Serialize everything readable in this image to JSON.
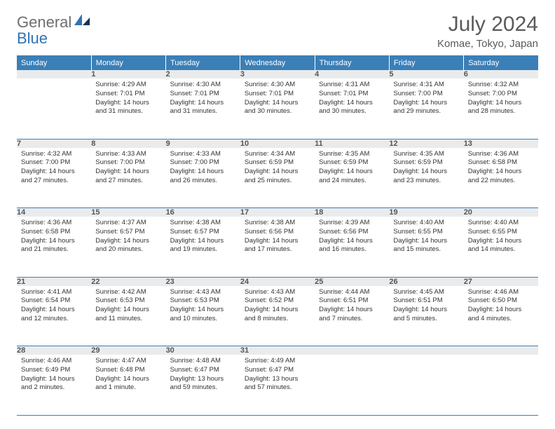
{
  "brand": {
    "name_part1": "General",
    "name_part2": "Blue"
  },
  "colors": {
    "header_bg": "#3b7fb7",
    "header_text": "#ffffff",
    "daynum_bg": "#e9ebec",
    "body_text": "#333333",
    "rule": "#3b7fb7",
    "logo_gray": "#6e6e6e",
    "logo_blue": "#2f74b5"
  },
  "title": "July 2024",
  "location": "Komae, Tokyo, Japan",
  "day_headers": [
    "Sunday",
    "Monday",
    "Tuesday",
    "Wednesday",
    "Thursday",
    "Friday",
    "Saturday"
  ],
  "weeks": [
    [
      null,
      {
        "n": "1",
        "sr": "Sunrise: 4:29 AM",
        "ss": "Sunset: 7:01 PM",
        "dl": "Daylight: 14 hours and 31 minutes."
      },
      {
        "n": "2",
        "sr": "Sunrise: 4:30 AM",
        "ss": "Sunset: 7:01 PM",
        "dl": "Daylight: 14 hours and 31 minutes."
      },
      {
        "n": "3",
        "sr": "Sunrise: 4:30 AM",
        "ss": "Sunset: 7:01 PM",
        "dl": "Daylight: 14 hours and 30 minutes."
      },
      {
        "n": "4",
        "sr": "Sunrise: 4:31 AM",
        "ss": "Sunset: 7:01 PM",
        "dl": "Daylight: 14 hours and 30 minutes."
      },
      {
        "n": "5",
        "sr": "Sunrise: 4:31 AM",
        "ss": "Sunset: 7:00 PM",
        "dl": "Daylight: 14 hours and 29 minutes."
      },
      {
        "n": "6",
        "sr": "Sunrise: 4:32 AM",
        "ss": "Sunset: 7:00 PM",
        "dl": "Daylight: 14 hours and 28 minutes."
      }
    ],
    [
      {
        "n": "7",
        "sr": "Sunrise: 4:32 AM",
        "ss": "Sunset: 7:00 PM",
        "dl": "Daylight: 14 hours and 27 minutes."
      },
      {
        "n": "8",
        "sr": "Sunrise: 4:33 AM",
        "ss": "Sunset: 7:00 PM",
        "dl": "Daylight: 14 hours and 27 minutes."
      },
      {
        "n": "9",
        "sr": "Sunrise: 4:33 AM",
        "ss": "Sunset: 7:00 PM",
        "dl": "Daylight: 14 hours and 26 minutes."
      },
      {
        "n": "10",
        "sr": "Sunrise: 4:34 AM",
        "ss": "Sunset: 6:59 PM",
        "dl": "Daylight: 14 hours and 25 minutes."
      },
      {
        "n": "11",
        "sr": "Sunrise: 4:35 AM",
        "ss": "Sunset: 6:59 PM",
        "dl": "Daylight: 14 hours and 24 minutes."
      },
      {
        "n": "12",
        "sr": "Sunrise: 4:35 AM",
        "ss": "Sunset: 6:59 PM",
        "dl": "Daylight: 14 hours and 23 minutes."
      },
      {
        "n": "13",
        "sr": "Sunrise: 4:36 AM",
        "ss": "Sunset: 6:58 PM",
        "dl": "Daylight: 14 hours and 22 minutes."
      }
    ],
    [
      {
        "n": "14",
        "sr": "Sunrise: 4:36 AM",
        "ss": "Sunset: 6:58 PM",
        "dl": "Daylight: 14 hours and 21 minutes."
      },
      {
        "n": "15",
        "sr": "Sunrise: 4:37 AM",
        "ss": "Sunset: 6:57 PM",
        "dl": "Daylight: 14 hours and 20 minutes."
      },
      {
        "n": "16",
        "sr": "Sunrise: 4:38 AM",
        "ss": "Sunset: 6:57 PM",
        "dl": "Daylight: 14 hours and 19 minutes."
      },
      {
        "n": "17",
        "sr": "Sunrise: 4:38 AM",
        "ss": "Sunset: 6:56 PM",
        "dl": "Daylight: 14 hours and 17 minutes."
      },
      {
        "n": "18",
        "sr": "Sunrise: 4:39 AM",
        "ss": "Sunset: 6:56 PM",
        "dl": "Daylight: 14 hours and 16 minutes."
      },
      {
        "n": "19",
        "sr": "Sunrise: 4:40 AM",
        "ss": "Sunset: 6:55 PM",
        "dl": "Daylight: 14 hours and 15 minutes."
      },
      {
        "n": "20",
        "sr": "Sunrise: 4:40 AM",
        "ss": "Sunset: 6:55 PM",
        "dl": "Daylight: 14 hours and 14 minutes."
      }
    ],
    [
      {
        "n": "21",
        "sr": "Sunrise: 4:41 AM",
        "ss": "Sunset: 6:54 PM",
        "dl": "Daylight: 14 hours and 12 minutes."
      },
      {
        "n": "22",
        "sr": "Sunrise: 4:42 AM",
        "ss": "Sunset: 6:53 PM",
        "dl": "Daylight: 14 hours and 11 minutes."
      },
      {
        "n": "23",
        "sr": "Sunrise: 4:43 AM",
        "ss": "Sunset: 6:53 PM",
        "dl": "Daylight: 14 hours and 10 minutes."
      },
      {
        "n": "24",
        "sr": "Sunrise: 4:43 AM",
        "ss": "Sunset: 6:52 PM",
        "dl": "Daylight: 14 hours and 8 minutes."
      },
      {
        "n": "25",
        "sr": "Sunrise: 4:44 AM",
        "ss": "Sunset: 6:51 PM",
        "dl": "Daylight: 14 hours and 7 minutes."
      },
      {
        "n": "26",
        "sr": "Sunrise: 4:45 AM",
        "ss": "Sunset: 6:51 PM",
        "dl": "Daylight: 14 hours and 5 minutes."
      },
      {
        "n": "27",
        "sr": "Sunrise: 4:46 AM",
        "ss": "Sunset: 6:50 PM",
        "dl": "Daylight: 14 hours and 4 minutes."
      }
    ],
    [
      {
        "n": "28",
        "sr": "Sunrise: 4:46 AM",
        "ss": "Sunset: 6:49 PM",
        "dl": "Daylight: 14 hours and 2 minutes."
      },
      {
        "n": "29",
        "sr": "Sunrise: 4:47 AM",
        "ss": "Sunset: 6:48 PM",
        "dl": "Daylight: 14 hours and 1 minute."
      },
      {
        "n": "30",
        "sr": "Sunrise: 4:48 AM",
        "ss": "Sunset: 6:47 PM",
        "dl": "Daylight: 13 hours and 59 minutes."
      },
      {
        "n": "31",
        "sr": "Sunrise: 4:49 AM",
        "ss": "Sunset: 6:47 PM",
        "dl": "Daylight: 13 hours and 57 minutes."
      },
      null,
      null,
      null
    ]
  ]
}
